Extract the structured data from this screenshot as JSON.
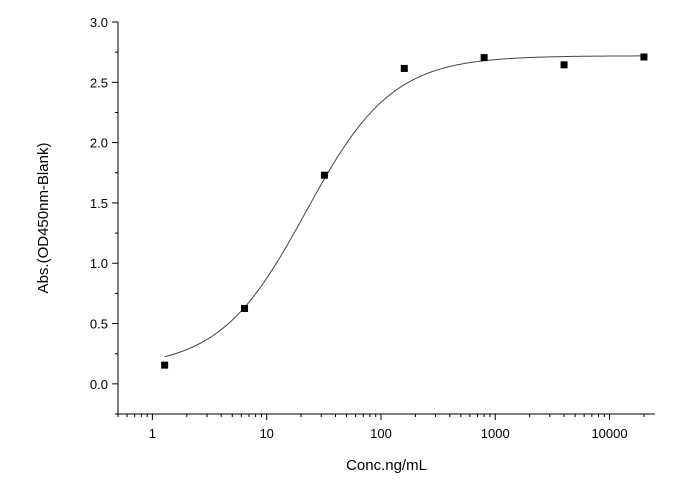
{
  "chart_data": {
    "type": "scatter",
    "title": "",
    "xlabel": "Conc.ng/mL",
    "ylabel": "Abs.(OD450nm-Blank)",
    "x_scale": "log",
    "xlim": [
      0.5,
      25000
    ],
    "ylim": [
      -0.25,
      3.0
    ],
    "x_ticks": [
      {
        "value": 1,
        "label": "1"
      },
      {
        "value": 10,
        "label": "10"
      },
      {
        "value": 100,
        "label": "100"
      },
      {
        "value": 1000,
        "label": "1000"
      },
      {
        "value": 10000,
        "label": "10000"
      }
    ],
    "y_ticks": [
      {
        "value": 0.0,
        "label": "0.0"
      },
      {
        "value": 0.5,
        "label": "0.5"
      },
      {
        "value": 1.0,
        "label": "1.0"
      },
      {
        "value": 1.5,
        "label": "1.5"
      },
      {
        "value": 2.0,
        "label": "2.0"
      },
      {
        "value": 2.5,
        "label": "2.5"
      },
      {
        "value": 3.0,
        "label": "3.0"
      }
    ],
    "grid": false,
    "series": [
      {
        "x": [
          1.28,
          6.4,
          32,
          160,
          800,
          4000,
          20000
        ],
        "y": [
          0.155,
          0.625,
          1.73,
          2.615,
          2.705,
          2.645,
          2.71
        ],
        "marker": "square",
        "color": "#000000"
      }
    ],
    "fit_curve": {
      "model": "4PL",
      "bottom": 0.13,
      "top": 2.72,
      "ec50": 22,
      "hill": 1.15,
      "color": "#444444"
    }
  }
}
